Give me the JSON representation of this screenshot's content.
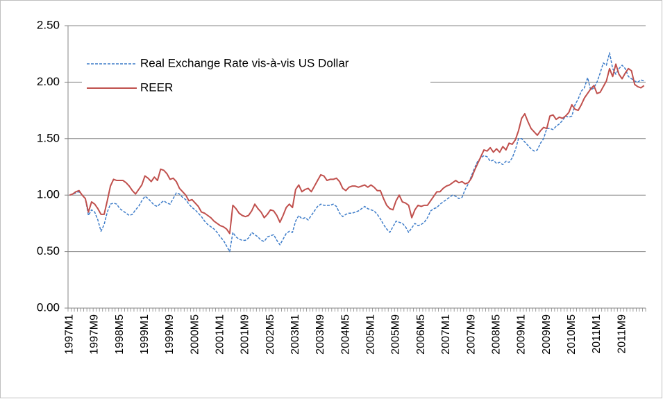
{
  "chart_data": {
    "type": "line",
    "categories": [
      "1997M1",
      null,
      null,
      null,
      null,
      null,
      null,
      null,
      "1997M9",
      null,
      null,
      null,
      null,
      null,
      null,
      null,
      "1998M5",
      null,
      null,
      null,
      null,
      null,
      null,
      null,
      "1999M1",
      null,
      null,
      null,
      null,
      null,
      null,
      null,
      "1999M9",
      null,
      null,
      null,
      null,
      null,
      null,
      null,
      "2000M5",
      null,
      null,
      null,
      null,
      null,
      null,
      null,
      "2001M1",
      null,
      null,
      null,
      null,
      null,
      null,
      null,
      "2001M9",
      null,
      null,
      null,
      null,
      null,
      null,
      null,
      "2002M5",
      null,
      null,
      null,
      null,
      null,
      null,
      null,
      "2003M1",
      null,
      null,
      null,
      null,
      null,
      null,
      null,
      "2003M9",
      null,
      null,
      null,
      null,
      null,
      null,
      null,
      "2004M5",
      null,
      null,
      null,
      null,
      null,
      null,
      null,
      "2005M1",
      null,
      null,
      null,
      null,
      null,
      null,
      null,
      "2005M9",
      null,
      null,
      null,
      null,
      null,
      null,
      null,
      "2006M5",
      null,
      null,
      null,
      null,
      null,
      null,
      null,
      "2007M1",
      null,
      null,
      null,
      null,
      null,
      null,
      null,
      "2007M9",
      null,
      null,
      null,
      null,
      null,
      null,
      null,
      "2008M5",
      null,
      null,
      null,
      null,
      null,
      null,
      null,
      "2009M1",
      null,
      null,
      null,
      null,
      null,
      null,
      null,
      "2009M9",
      null,
      null,
      null,
      null,
      null,
      null,
      null,
      "2010M5",
      null,
      null,
      null,
      null,
      null,
      null,
      null,
      "2011M1",
      null,
      null,
      null,
      null,
      null,
      null,
      null,
      "2011M9",
      null,
      null,
      null,
      null,
      null,
      null,
      null
    ],
    "series": [
      {
        "name": "Real Exchange  Rate vis-à-vis US Dollar",
        "color": "#3d7cc9",
        "dash": true,
        "values": [
          1.0,
          1.01,
          1.02,
          1.03,
          1.0,
          0.97,
          0.82,
          0.87,
          0.85,
          0.78,
          0.68,
          0.74,
          0.85,
          0.92,
          0.93,
          0.92,
          0.88,
          0.86,
          0.84,
          0.82,
          0.83,
          0.87,
          0.9,
          0.95,
          0.99,
          0.97,
          0.94,
          0.91,
          0.9,
          0.93,
          0.95,
          0.93,
          0.92,
          0.97,
          1.02,
          1.01,
          0.98,
          0.96,
          0.92,
          0.89,
          0.87,
          0.84,
          0.81,
          0.77,
          0.74,
          0.72,
          0.7,
          0.67,
          0.63,
          0.6,
          0.55,
          0.5,
          0.67,
          0.63,
          0.61,
          0.6,
          0.6,
          0.62,
          0.67,
          0.65,
          0.63,
          0.6,
          0.59,
          0.63,
          0.64,
          0.65,
          0.6,
          0.56,
          0.61,
          0.66,
          0.68,
          0.67,
          0.77,
          0.82,
          0.79,
          0.8,
          0.78,
          0.82,
          0.86,
          0.9,
          0.92,
          0.91,
          0.91,
          0.91,
          0.92,
          0.9,
          0.84,
          0.81,
          0.83,
          0.84,
          0.84,
          0.85,
          0.86,
          0.88,
          0.9,
          0.88,
          0.87,
          0.86,
          0.83,
          0.79,
          0.74,
          0.7,
          0.67,
          0.72,
          0.77,
          0.76,
          0.75,
          0.72,
          0.67,
          0.71,
          0.75,
          0.73,
          0.74,
          0.76,
          0.8,
          0.86,
          0.88,
          0.89,
          0.92,
          0.94,
          0.96,
          0.98,
          1.0,
          0.99,
          0.97,
          0.98,
          1.05,
          1.1,
          1.17,
          1.24,
          1.3,
          1.33,
          1.35,
          1.34,
          1.3,
          1.31,
          1.28,
          1.29,
          1.27,
          1.3,
          1.29,
          1.33,
          1.4,
          1.5,
          1.5,
          1.47,
          1.44,
          1.41,
          1.39,
          1.4,
          1.46,
          1.5,
          1.59,
          1.59,
          1.58,
          1.61,
          1.63,
          1.66,
          1.7,
          1.69,
          1.7,
          1.8,
          1.85,
          1.92,
          1.95,
          2.04,
          1.93,
          1.95,
          2.0,
          2.08,
          2.17,
          2.15,
          2.26,
          2.12,
          2.07,
          2.12,
          2.15,
          2.12,
          2.05,
          2.03,
          2.01,
          2.0,
          2.02,
          2.01
        ]
      },
      {
        "name": "REER",
        "color": "#c0504d",
        "dash": false,
        "values": [
          1.0,
          1.01,
          1.03,
          1.04,
          1.0,
          0.97,
          0.85,
          0.94,
          0.92,
          0.88,
          0.83,
          0.83,
          0.95,
          1.08,
          1.14,
          1.13,
          1.13,
          1.13,
          1.11,
          1.08,
          1.04,
          1.01,
          1.05,
          1.09,
          1.17,
          1.15,
          1.12,
          1.16,
          1.13,
          1.23,
          1.22,
          1.19,
          1.14,
          1.15,
          1.12,
          1.06,
          1.03,
          1.0,
          0.95,
          0.96,
          0.93,
          0.9,
          0.85,
          0.84,
          0.82,
          0.8,
          0.77,
          0.75,
          0.73,
          0.72,
          0.7,
          0.66,
          0.91,
          0.88,
          0.84,
          0.82,
          0.81,
          0.82,
          0.86,
          0.92,
          0.88,
          0.85,
          0.8,
          0.83,
          0.87,
          0.86,
          0.82,
          0.76,
          0.82,
          0.89,
          0.92,
          0.89,
          1.05,
          1.09,
          1.03,
          1.05,
          1.06,
          1.03,
          1.08,
          1.13,
          1.18,
          1.17,
          1.13,
          1.14,
          1.14,
          1.15,
          1.12,
          1.06,
          1.04,
          1.07,
          1.08,
          1.08,
          1.07,
          1.08,
          1.09,
          1.07,
          1.09,
          1.07,
          1.04,
          1.04,
          0.97,
          0.91,
          0.88,
          0.87,
          0.95,
          1.0,
          0.94,
          0.93,
          0.91,
          0.8,
          0.87,
          0.91,
          0.9,
          0.91,
          0.91,
          0.95,
          0.99,
          1.03,
          1.03,
          1.06,
          1.08,
          1.09,
          1.11,
          1.13,
          1.11,
          1.12,
          1.1,
          1.11,
          1.15,
          1.22,
          1.28,
          1.34,
          1.4,
          1.39,
          1.42,
          1.38,
          1.41,
          1.38,
          1.43,
          1.4,
          1.46,
          1.45,
          1.49,
          1.57,
          1.68,
          1.72,
          1.65,
          1.59,
          1.56,
          1.53,
          1.57,
          1.6,
          1.59,
          1.7,
          1.71,
          1.67,
          1.69,
          1.68,
          1.7,
          1.73,
          1.8,
          1.76,
          1.75,
          1.8,
          1.86,
          1.9,
          1.94,
          1.97,
          1.9,
          1.91,
          1.96,
          2.01,
          2.12,
          2.05,
          2.16,
          2.07,
          2.03,
          2.08,
          2.12,
          2.1,
          1.98,
          1.96,
          1.95,
          1.97
        ]
      }
    ],
    "ylim": [
      0,
      2.5
    ],
    "yticks": [
      {
        "value": 0,
        "label": "0.00"
      },
      {
        "value": 0.5,
        "label": "0.50"
      },
      {
        "value": 1,
        "label": "1.00"
      },
      {
        "value": 1.5,
        "label": "1.50"
      },
      {
        "value": 2,
        "label": "2.00"
      },
      {
        "value": 2.5,
        "label": "2.50"
      }
    ],
    "grid": true,
    "legend": "upper left"
  }
}
